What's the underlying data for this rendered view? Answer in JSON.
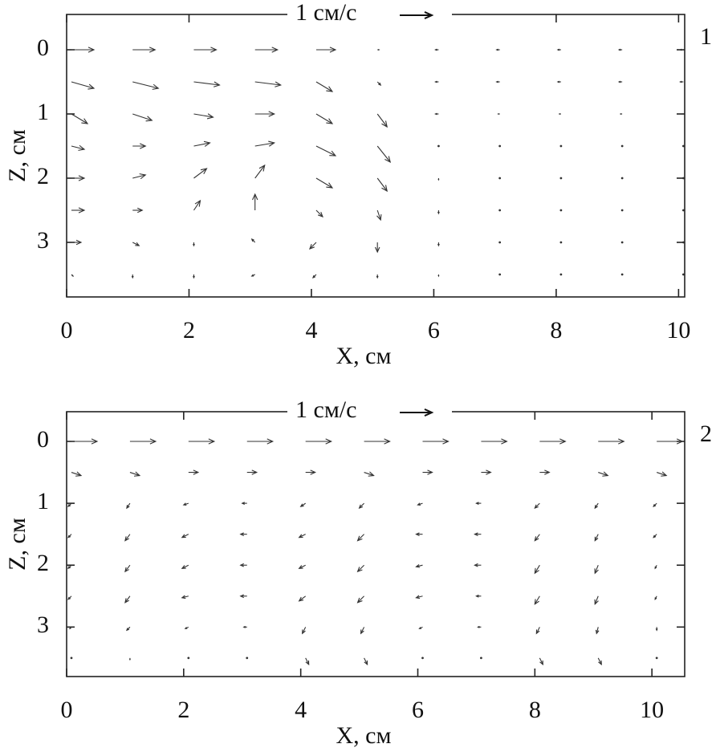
{
  "chart_data": [
    {
      "type": "quiver",
      "panel_label": "1",
      "scale_label": "1 см/с",
      "scale_value": 1,
      "xlabel": "X, см",
      "ylabel": "Z, см",
      "xlim": [
        0,
        10.1
      ],
      "ylim": [
        -0.55,
        3.85
      ],
      "y_inverted": true,
      "xticks": [
        0,
        2,
        4,
        6,
        8,
        10
      ],
      "yticks": [
        0,
        1,
        2,
        3
      ],
      "color": "#333333",
      "x": [
        0,
        1,
        2,
        3,
        4,
        5,
        6,
        7,
        8,
        9,
        10
      ],
      "z": [
        0,
        0.5,
        1,
        1.5,
        2,
        2.5,
        3,
        3.5
      ],
      "u": [
        [
          0.7,
          0.7,
          0.7,
          0.7,
          0.6,
          0.05,
          -0.1,
          -0.1,
          -0.1,
          -0.1,
          -0.1
        ],
        [
          0.7,
          0.8,
          0.8,
          0.8,
          0.5,
          0.1,
          -0.1,
          -0.1,
          -0.1,
          -0.1,
          -0.1
        ],
        [
          0.5,
          0.6,
          0.6,
          0.6,
          0.5,
          0.3,
          -0.1,
          -0.05,
          -0.05,
          -0.05,
          -0.05
        ],
        [
          0.4,
          0.4,
          0.5,
          0.6,
          0.6,
          0.4,
          0,
          0,
          0,
          0,
          0
        ],
        [
          0.4,
          0.4,
          0.4,
          0.3,
          0.5,
          0.3,
          0,
          0,
          0,
          0,
          0
        ],
        [
          0.4,
          0.3,
          0.2,
          0,
          0.2,
          0.1,
          0,
          0,
          0,
          0,
          0
        ],
        [
          0.3,
          0.2,
          0,
          -0.1,
          -0.2,
          0,
          0,
          0,
          0,
          0,
          0
        ],
        [
          0.05,
          0,
          0,
          -0.1,
          -0.1,
          0,
          0,
          0,
          0,
          0,
          0
        ]
      ],
      "w": [
        [
          0,
          0,
          0,
          0,
          0,
          0,
          0,
          0,
          0,
          0,
          0
        ],
        [
          0.2,
          0.2,
          0.1,
          0.1,
          0.3,
          0.1,
          0,
          0,
          0,
          0,
          0
        ],
        [
          0.3,
          0.2,
          0.1,
          0,
          0.3,
          0.4,
          0,
          0,
          0,
          0,
          0
        ],
        [
          0.1,
          0,
          -0.1,
          -0.1,
          0.3,
          0.5,
          0,
          0,
          0,
          0,
          0
        ],
        [
          0,
          -0.1,
          -0.3,
          -0.4,
          0.3,
          0.4,
          0.05,
          0,
          0,
          0,
          0
        ],
        [
          0,
          0,
          -0.3,
          -0.5,
          0.2,
          0.3,
          0.1,
          0,
          0,
          0,
          0
        ],
        [
          0,
          0.1,
          0.1,
          -0.1,
          0.2,
          0.3,
          0.1,
          0,
          0,
          0,
          0
        ],
        [
          0.05,
          0.1,
          0.1,
          0.05,
          0.1,
          0.1,
          0.05,
          0,
          0,
          0,
          0
        ]
      ]
    },
    {
      "type": "quiver",
      "panel_label": "2",
      "scale_label": "1 см/с",
      "scale_value": 1,
      "xlabel": "X, см",
      "ylabel": "Z, см",
      "xlim": [
        0,
        10.56
      ],
      "ylim": [
        -0.48,
        3.8
      ],
      "y_inverted": true,
      "xticks": [
        0,
        2,
        4,
        6,
        8,
        10
      ],
      "yticks": [
        0,
        1,
        2,
        3
      ],
      "color": "#333333",
      "x": [
        0,
        1,
        2,
        3,
        4,
        5,
        6,
        7,
        8,
        9,
        10
      ],
      "z": [
        0,
        0.5,
        1,
        1.5,
        2,
        2.5,
        3,
        3.5
      ],
      "u": [
        [
          0.8,
          0.8,
          0.8,
          0.8,
          0.8,
          0.8,
          0.8,
          0.8,
          0.8,
          0.8,
          0.8
        ],
        [
          0.3,
          0.3,
          0.3,
          0.3,
          0.3,
          0.3,
          0.3,
          0.3,
          0.3,
          0.3,
          0.3
        ],
        [
          -0.1,
          -0.1,
          -0.15,
          -0.15,
          -0.15,
          -0.15,
          -0.15,
          -0.15,
          -0.15,
          -0.1,
          -0.1
        ],
        [
          -0.1,
          -0.15,
          -0.2,
          -0.2,
          -0.2,
          -0.2,
          -0.2,
          -0.2,
          -0.15,
          -0.1,
          -0.1
        ],
        [
          -0.1,
          -0.15,
          -0.2,
          -0.2,
          -0.2,
          -0.2,
          -0.2,
          -0.2,
          -0.15,
          -0.1,
          -0.05
        ],
        [
          -0.1,
          -0.15,
          -0.2,
          -0.2,
          -0.2,
          -0.2,
          -0.2,
          -0.15,
          -0.15,
          -0.1,
          -0.05
        ],
        [
          -0.05,
          -0.1,
          -0.1,
          -0.1,
          -0.1,
          -0.1,
          -0.1,
          -0.1,
          -0.1,
          -0.05,
          0
        ],
        [
          0,
          0,
          0,
          0,
          0.1,
          0.1,
          0,
          0,
          0.1,
          0.1,
          0
        ]
      ],
      "w": [
        [
          0,
          0,
          0,
          0,
          0,
          0,
          0,
          0,
          0,
          0,
          0
        ],
        [
          0.1,
          0.1,
          0,
          0,
          0,
          0.1,
          0,
          0,
          0,
          0.1,
          0.1
        ],
        [
          0.1,
          0.15,
          0.05,
          0,
          0.1,
          0.15,
          0.05,
          0,
          0.15,
          0.15,
          0.1
        ],
        [
          0.1,
          0.2,
          0.1,
          0,
          0.1,
          0.2,
          0,
          0,
          0.2,
          0.2,
          0.1
        ],
        [
          0.1,
          0.2,
          0.1,
          0,
          0.1,
          0.2,
          0.05,
          0,
          0.25,
          0.25,
          0.1
        ],
        [
          0.1,
          0.2,
          0.05,
          0,
          0.15,
          0.2,
          0.05,
          0,
          0.25,
          0.25,
          0.1
        ],
        [
          0.05,
          0.1,
          0.05,
          0,
          0.2,
          0.2,
          0.05,
          0,
          0.2,
          0.2,
          0.1
        ],
        [
          0,
          0.05,
          0,
          0,
          0.2,
          0.2,
          0,
          0,
          0.2,
          0.2,
          0
        ]
      ]
    }
  ]
}
